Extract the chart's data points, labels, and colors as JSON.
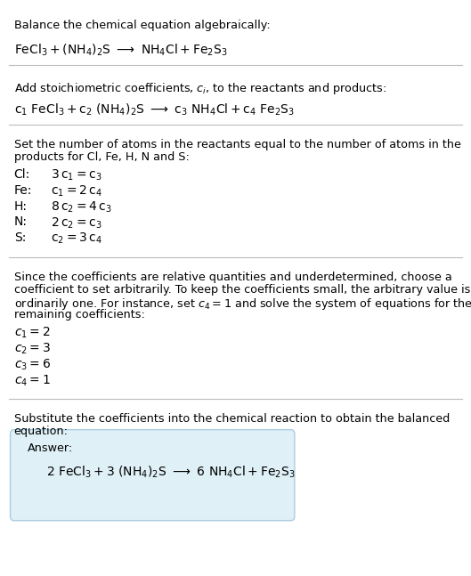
{
  "background_color": "#ffffff",
  "text_color": "#000000",
  "answer_box_facecolor": "#dff0f7",
  "answer_box_edgecolor": "#aacce0",
  "figure_width": 5.29,
  "figure_height": 6.47,
  "dpi": 100,
  "section1": {
    "title": "Balance the chemical equation algebraically:",
    "eq": "$\\mathrm{FeCl_3 + (NH_4)_2S \\ \\longrightarrow \\ NH_4Cl + Fe_2S_3}$"
  },
  "section2": {
    "intro": "Add stoichiometric coefficients, $c_i$, to the reactants and products:",
    "eq": "$\\mathrm{c_1 \\ FeCl_3 + c_2 \\ (NH_4)_2S \\ \\longrightarrow \\ c_3 \\ NH_4Cl + c_4 \\ Fe_2S_3}$"
  },
  "section3": {
    "line1": "Set the number of atoms in the reactants equal to the number of atoms in the",
    "line2": "products for Cl, Fe, H, N and S:",
    "atoms": [
      {
        "label": "Cl:",
        "eq": "$\\mathrm{3\\,c_1 = c_3}$"
      },
      {
        "label": "Fe:",
        "eq": "$\\mathrm{c_1 = 2\\,c_4}$"
      },
      {
        "label": "H:",
        "eq": "$\\mathrm{8\\,c_2 = 4\\,c_3}$"
      },
      {
        "label": "N:",
        "eq": "$\\mathrm{2\\,c_2 = c_3}$"
      },
      {
        "label": "S:",
        "eq": "$\\mathrm{c_2 = 3\\,c_4}$"
      }
    ]
  },
  "section4": {
    "line1": "Since the coefficients are relative quantities and underdetermined, choose a",
    "line2": "coefficient to set arbitrarily. To keep the coefficients small, the arbitrary value is",
    "line3": "ordinarily one. For instance, set $c_4 = 1$ and solve the system of equations for the",
    "line4": "remaining coefficients:",
    "solutions": [
      "$c_1 = 2$",
      "$c_2 = 3$",
      "$c_3 = 6$",
      "$c_4 = 1$"
    ]
  },
  "section5": {
    "line1": "Substitute the coefficients into the chemical reaction to obtain the balanced",
    "line2": "equation:",
    "answer_label": "Answer:",
    "answer_eq": "$\\mathrm{2\\ FeCl_3 + 3\\ (NH_4)_2S \\ \\longrightarrow \\ 6\\ NH_4Cl + Fe_2S_3}$"
  }
}
